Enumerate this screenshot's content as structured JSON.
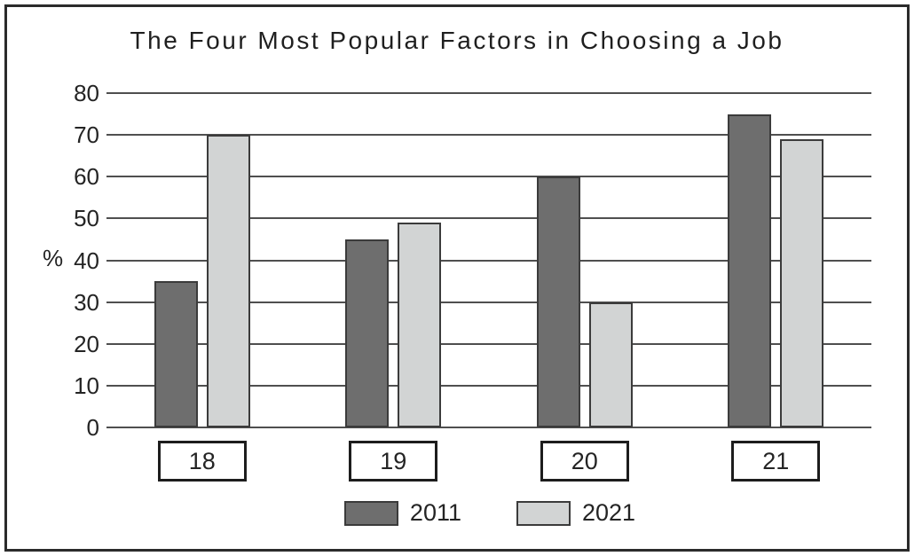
{
  "chart_data": {
    "type": "bar",
    "title": "The Four Most Popular Factors in Choosing a Job",
    "ylabel": "%",
    "xlabel": "",
    "ylim": [
      0,
      80
    ],
    "yticks": [
      0,
      10,
      20,
      30,
      40,
      50,
      60,
      70,
      80
    ],
    "grid": true,
    "categories": [
      "18",
      "19",
      "20",
      "21"
    ],
    "series": [
      {
        "name": "2011",
        "color": "#6e6e6e",
        "values": [
          35,
          45,
          60,
          75
        ]
      },
      {
        "name": "2021",
        "color": "#d2d4d4",
        "values": [
          70,
          49,
          30,
          69
        ]
      }
    ],
    "legend_position": "bottom",
    "colors": {
      "gridline": "#4f4f4f",
      "bar_border": "#3b3b3b",
      "frame": "#2b2b2b",
      "text": "#242424"
    }
  }
}
